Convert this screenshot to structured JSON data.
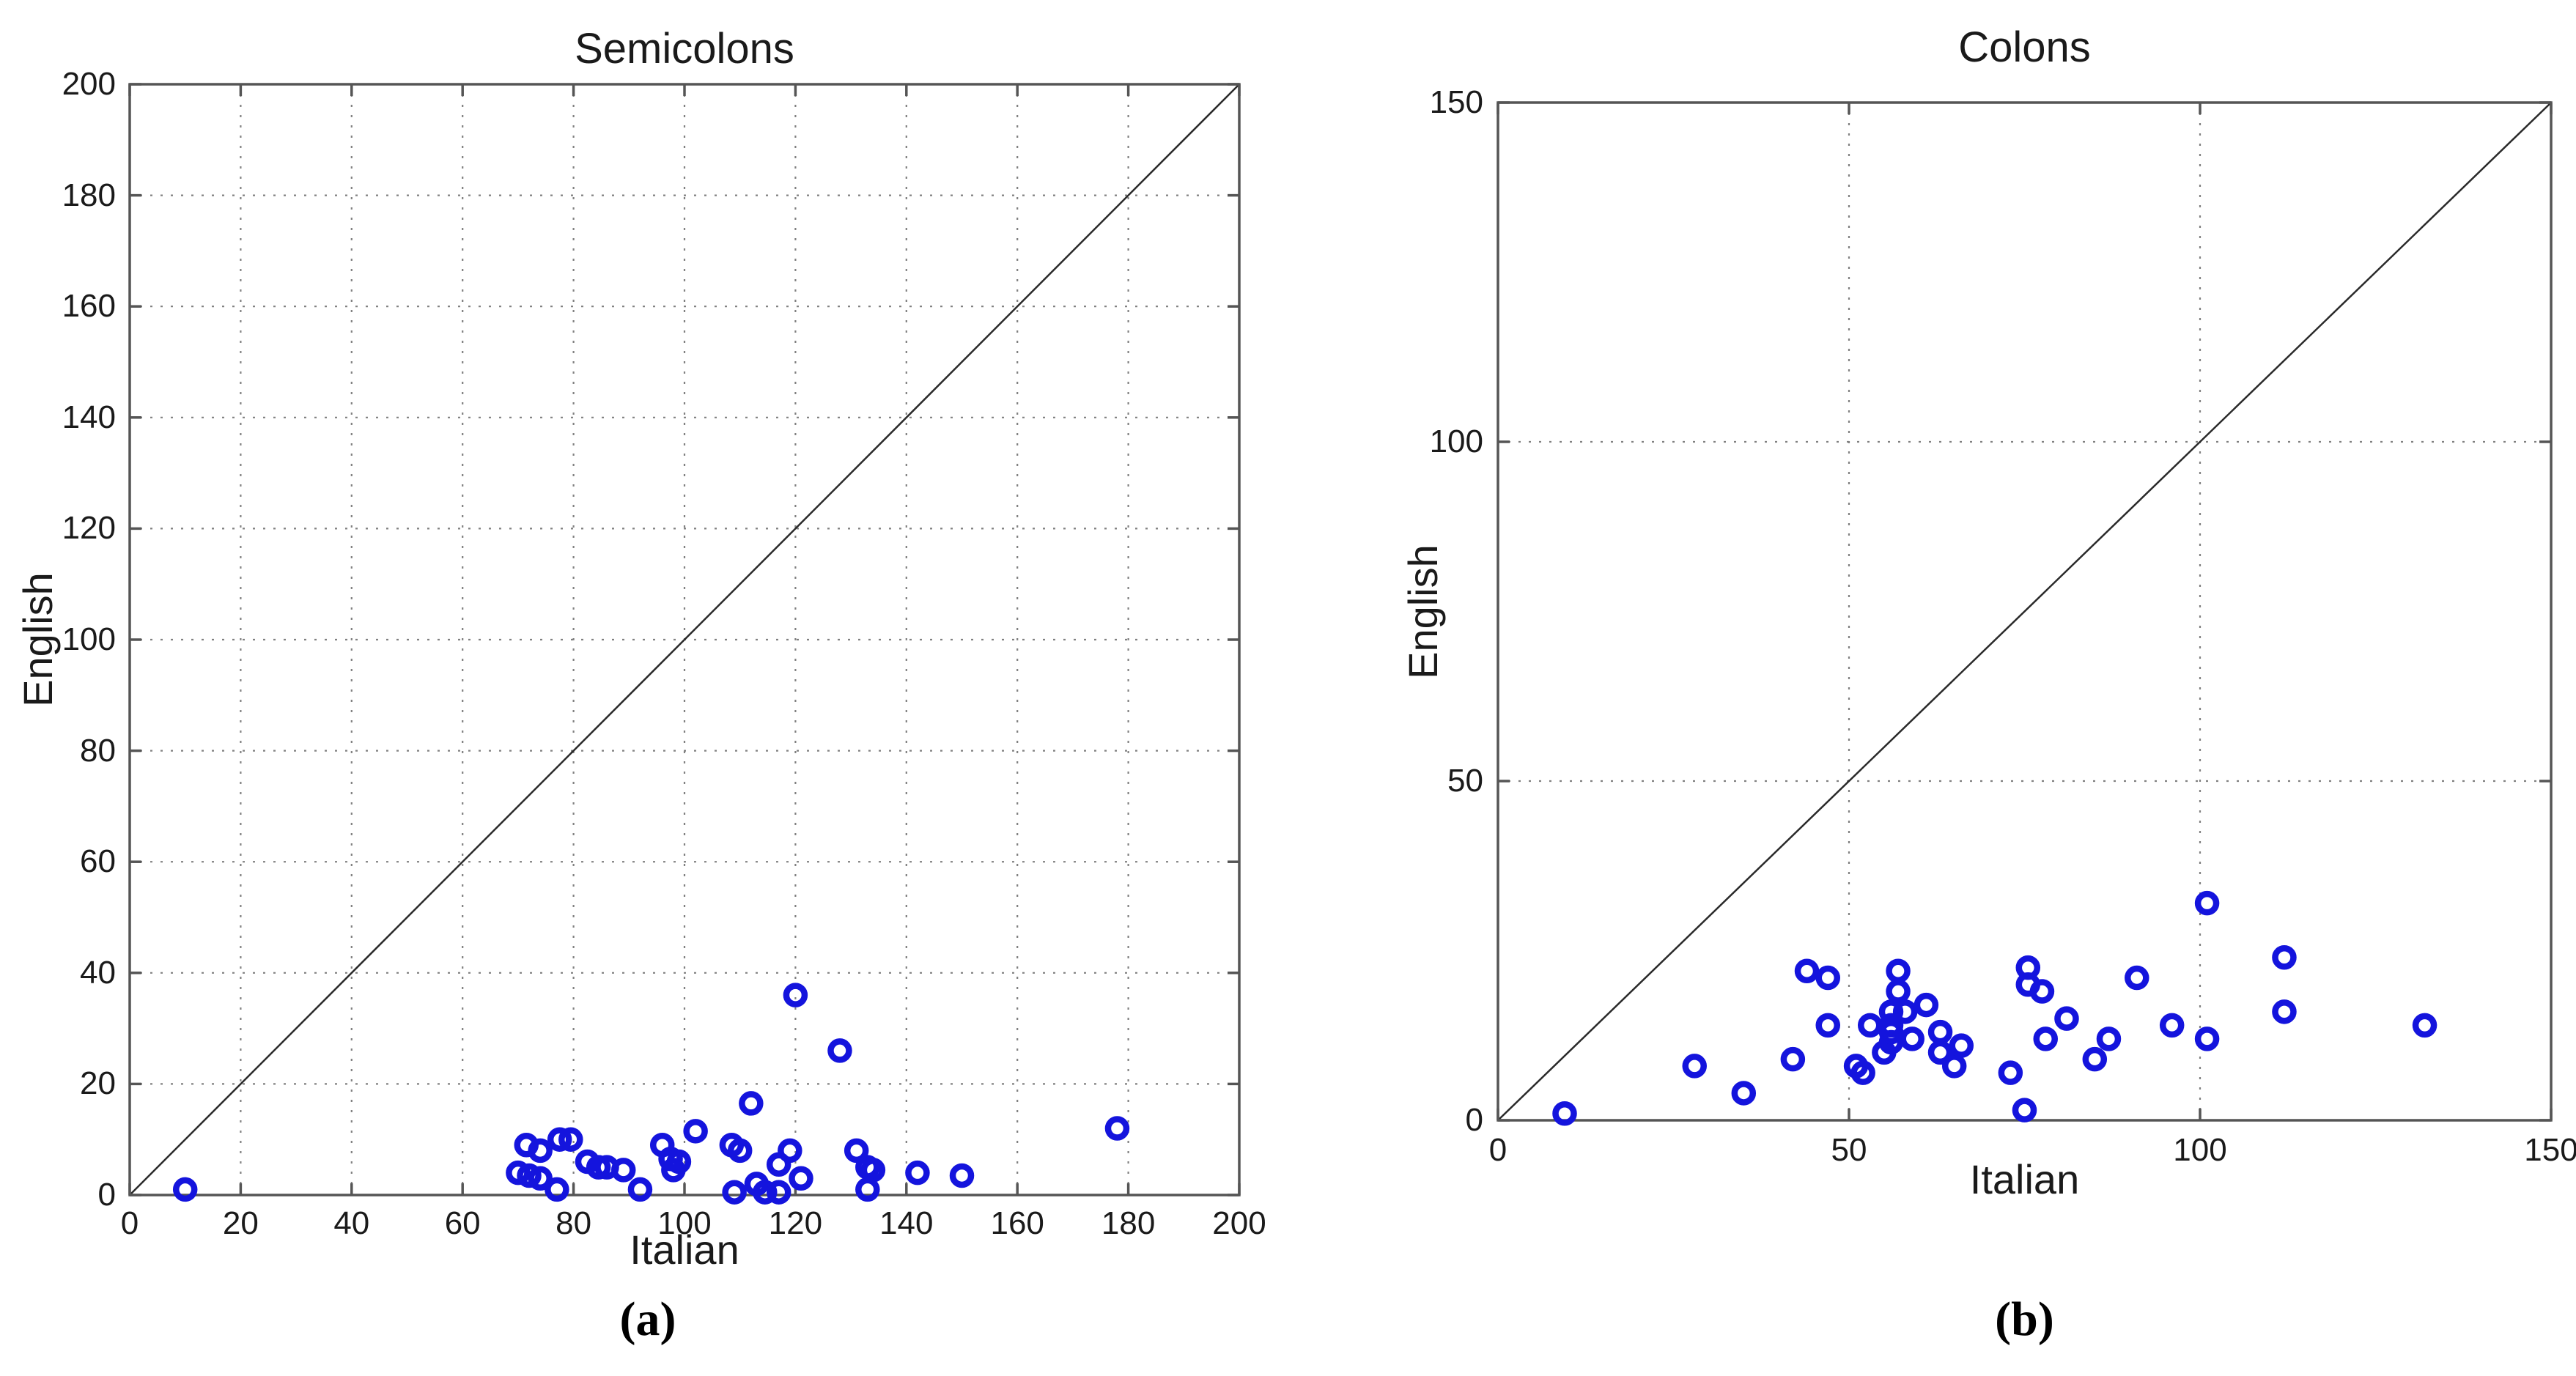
{
  "figure": {
    "background": "#ffffff",
    "marker_color": "#1414dd",
    "axis_color": "#555555",
    "grid_color": "#808080",
    "diagonal_color": "#2a2a2a",
    "captions": {
      "a": "(a)",
      "b": "(b)"
    }
  },
  "chart_data": [
    {
      "type": "scatter",
      "panel": "a",
      "title": "Semicolons",
      "xlabel": "Italian",
      "ylabel": "English",
      "caption": "(a)",
      "xlim": [
        0,
        200
      ],
      "ylim": [
        0,
        200
      ],
      "xticks": [
        0,
        20,
        40,
        60,
        80,
        100,
        120,
        140,
        160,
        180,
        200
      ],
      "yticks": [
        0,
        20,
        40,
        60,
        80,
        100,
        120,
        140,
        160,
        180,
        200
      ],
      "grid": true,
      "diagonal_line": true,
      "legend": "none",
      "marker": {
        "shape": "open-circle",
        "color": "#1414dd"
      },
      "points": [
        [
          10,
          1
        ],
        [
          70,
          4
        ],
        [
          71.5,
          9
        ],
        [
          72,
          3.5
        ],
        [
          74,
          3
        ],
        [
          74,
          8
        ],
        [
          77,
          1
        ],
        [
          77.5,
          10
        ],
        [
          79.5,
          10
        ],
        [
          82.5,
          6
        ],
        [
          84.5,
          5
        ],
        [
          86,
          5
        ],
        [
          89,
          4.5
        ],
        [
          92,
          1
        ],
        [
          96,
          9
        ],
        [
          97.5,
          6.5
        ],
        [
          98,
          4.5
        ],
        [
          99,
          6
        ],
        [
          102,
          11.5
        ],
        [
          108.5,
          9
        ],
        [
          109,
          0.5
        ],
        [
          110,
          8
        ],
        [
          112,
          16.5
        ],
        [
          113,
          2
        ],
        [
          114.5,
          0.5
        ],
        [
          117,
          0.5
        ],
        [
          117,
          5.5
        ],
        [
          119,
          8
        ],
        [
          121,
          3
        ],
        [
          120,
          36
        ],
        [
          128,
          26
        ],
        [
          131,
          8
        ],
        [
          133,
          5
        ],
        [
          134,
          4.5
        ],
        [
          133,
          1
        ],
        [
          142,
          4
        ],
        [
          150,
          3.5
        ],
        [
          178,
          12
        ]
      ]
    },
    {
      "type": "scatter",
      "panel": "b",
      "title": "Colons",
      "xlabel": "Italian",
      "ylabel": "English",
      "caption": "(b)",
      "xlim": [
        0,
        150
      ],
      "ylim": [
        0,
        150
      ],
      "xticks": [
        0,
        50,
        100,
        150
      ],
      "yticks": [
        0,
        50,
        100,
        150
      ],
      "grid": true,
      "diagonal_line": true,
      "legend": "none",
      "marker": {
        "shape": "open-circle",
        "color": "#1414dd"
      },
      "points": [
        [
          9.5,
          1
        ],
        [
          28,
          8
        ],
        [
          35,
          4
        ],
        [
          42,
          9
        ],
        [
          44,
          22
        ],
        [
          47,
          21
        ],
        [
          47,
          14
        ],
        [
          51,
          8
        ],
        [
          52,
          7
        ],
        [
          53,
          14
        ],
        [
          55,
          10
        ],
        [
          56,
          11.5
        ],
        [
          56,
          13
        ],
        [
          56,
          14
        ],
        [
          56,
          16
        ],
        [
          58,
          16
        ],
        [
          57,
          19
        ],
        [
          57,
          22
        ],
        [
          59,
          12
        ],
        [
          61,
          17
        ],
        [
          63,
          13
        ],
        [
          63,
          10
        ],
        [
          65,
          8
        ],
        [
          66,
          11
        ],
        [
          73,
          7
        ],
        [
          75,
          1.5
        ],
        [
          75.5,
          22.5
        ],
        [
          75.5,
          20
        ],
        [
          77.5,
          19
        ],
        [
          78,
          12
        ],
        [
          81,
          15
        ],
        [
          85,
          9
        ],
        [
          87,
          12
        ],
        [
          91,
          21
        ],
        [
          96,
          14
        ],
        [
          101,
          32
        ],
        [
          101,
          12
        ],
        [
          112,
          24
        ],
        [
          112,
          16
        ],
        [
          132,
          14
        ]
      ]
    }
  ]
}
